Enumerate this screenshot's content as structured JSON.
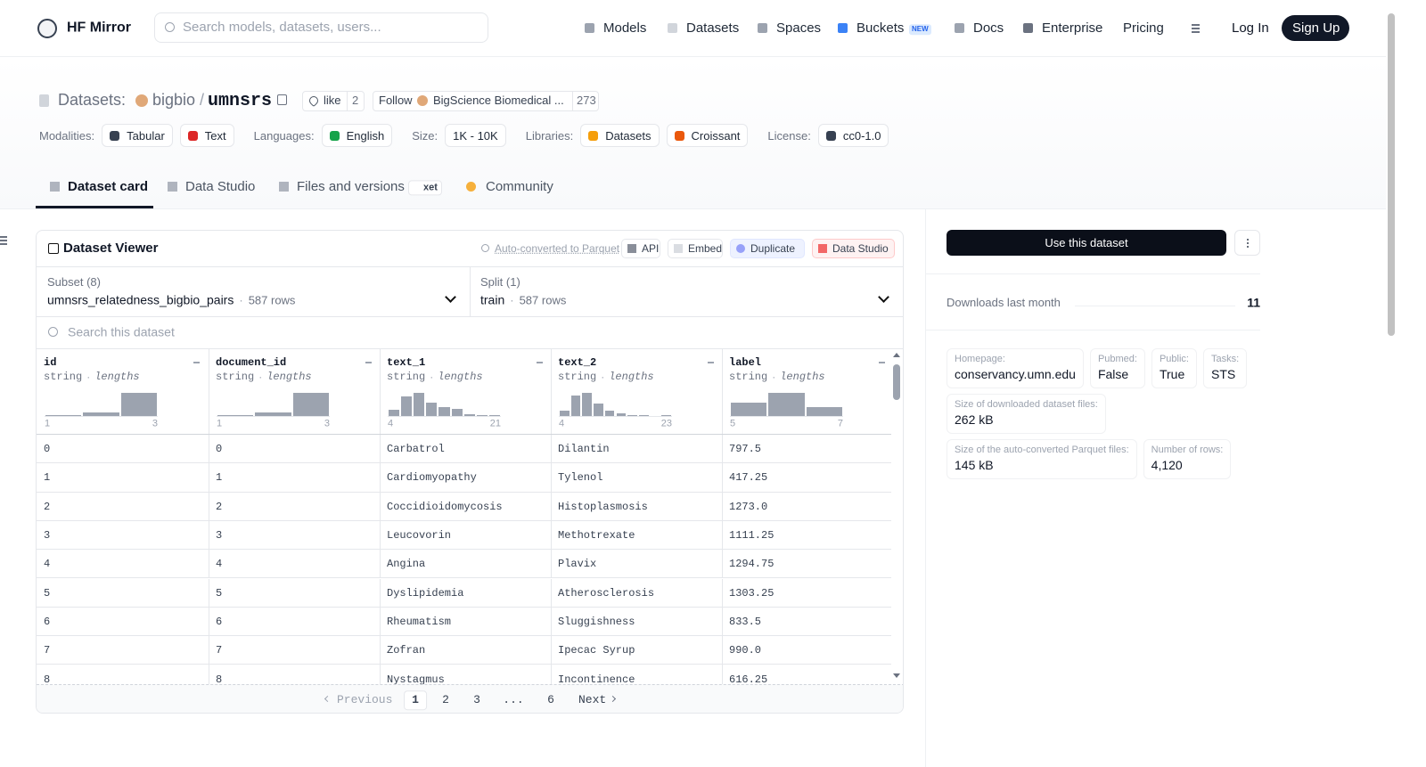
{
  "nav": {
    "brand": "HF Mirror",
    "search_placeholder": "Search models, datasets, users...",
    "links": [
      "Models",
      "Datasets",
      "Spaces",
      "Buckets",
      "Docs",
      "Enterprise",
      "Pricing"
    ],
    "new_badge": "NEW",
    "login": "Log In",
    "signup": "Sign Up"
  },
  "header": {
    "prefix": "Datasets:",
    "owner": "bigbio",
    "separator": "/",
    "name": "umnsrs",
    "like": "like",
    "likes": 2,
    "follow": "Follow",
    "org": "BigScience Biomedical ...",
    "followers": 273,
    "tags": [
      {
        "label": "Modalities:",
        "items": [
          "Tabular",
          "Text"
        ]
      },
      {
        "label": "Languages:",
        "items": [
          "English"
        ]
      },
      {
        "label": "Size:",
        "items": [
          "1K - 10K"
        ]
      },
      {
        "label": "Libraries:",
        "items": [
          "Datasets",
          "Croissant"
        ]
      },
      {
        "label": "License:",
        "items": [
          "cc0-1.0"
        ]
      }
    ]
  },
  "tabs": {
    "items": [
      "Dataset card",
      "Data Studio",
      "Files and versions",
      "Community"
    ],
    "xet_badge": "xet"
  },
  "viewer": {
    "title": "Dataset Viewer",
    "auto_converted": "Auto-converted to Parquet",
    "buttons": [
      "API",
      "Embed",
      "Duplicate",
      "Data Studio"
    ],
    "subset_label": "Subset (8)",
    "subset": "umnsrs_relatedness_bigbio_pairs",
    "subset_rows": "587 rows",
    "dot": "·",
    "split_label": "Split (1)",
    "split": "train",
    "split_rows": "587 rows",
    "search_placeholder": "Search this dataset",
    "columns": [
      {
        "name": "id",
        "type": "string",
        "stat": "lengths",
        "min": 1,
        "max": 3,
        "histogram": [
          1,
          4,
          25
        ]
      },
      {
        "name": "document_id",
        "type": "string",
        "stat": "lengths",
        "min": 1,
        "max": 3,
        "histogram": [
          1,
          4,
          25
        ]
      },
      {
        "name": "text_1",
        "type": "string",
        "stat": "lengths",
        "min": 4,
        "max": 21,
        "histogram": [
          7,
          22,
          26,
          15,
          10,
          8,
          2,
          1,
          1
        ]
      },
      {
        "name": "text_2",
        "type": "string",
        "stat": "lengths",
        "min": 4,
        "max": 23,
        "histogram": [
          6,
          22,
          25,
          13,
          6,
          3,
          1,
          1,
          0,
          1
        ]
      },
      {
        "name": "label",
        "type": "string",
        "stat": "lengths",
        "min": 5,
        "max": 7,
        "histogram": [
          14,
          25,
          10
        ]
      }
    ],
    "rows": [
      [
        "0",
        "0",
        "Carbatrol",
        "Dilantin",
        "797.5"
      ],
      [
        "1",
        "1",
        "Cardiomyopathy",
        "Tylenol",
        "417.25"
      ],
      [
        "2",
        "2",
        "Coccidioidomycosis",
        "Histoplasmosis",
        "1273.0"
      ],
      [
        "3",
        "3",
        "Leucovorin",
        "Methotrexate",
        "1111.25"
      ],
      [
        "4",
        "4",
        "Angina",
        "Plavix",
        "1294.75"
      ],
      [
        "5",
        "5",
        "Dyslipidemia",
        "Atherosclerosis",
        "1303.25"
      ],
      [
        "6",
        "6",
        "Rheumatism",
        "Sluggishness",
        "833.5"
      ],
      [
        "7",
        "7",
        "Zofran",
        "Ipecac Syrup",
        "990.0"
      ],
      [
        "8",
        "8",
        "Nystagmus",
        "Incontinence",
        "616.25"
      ]
    ],
    "pagination": {
      "previous": "Previous",
      "pages": [
        "1",
        "2",
        "3",
        "...",
        "6"
      ],
      "next": "Next"
    }
  },
  "sidebar": {
    "use_button": "Use this dataset",
    "downloads_label": "Downloads last month",
    "downloads": 11,
    "info_rows": [
      [
        {
          "label": "Homepage:",
          "value": "conservancy.umn.edu"
        },
        {
          "label": "Pubmed:",
          "value": "False"
        },
        {
          "label": "Public:",
          "value": "True"
        },
        {
          "label": "Tasks:",
          "value": "STS"
        }
      ],
      [
        {
          "label": "Size of downloaded dataset files:",
          "value": "262 kB"
        }
      ],
      [
        {
          "label": "Size of the auto-converted Parquet files:",
          "value": "145 kB"
        },
        {
          "label": "Number of rows:",
          "value": "4,120"
        }
      ]
    ]
  }
}
